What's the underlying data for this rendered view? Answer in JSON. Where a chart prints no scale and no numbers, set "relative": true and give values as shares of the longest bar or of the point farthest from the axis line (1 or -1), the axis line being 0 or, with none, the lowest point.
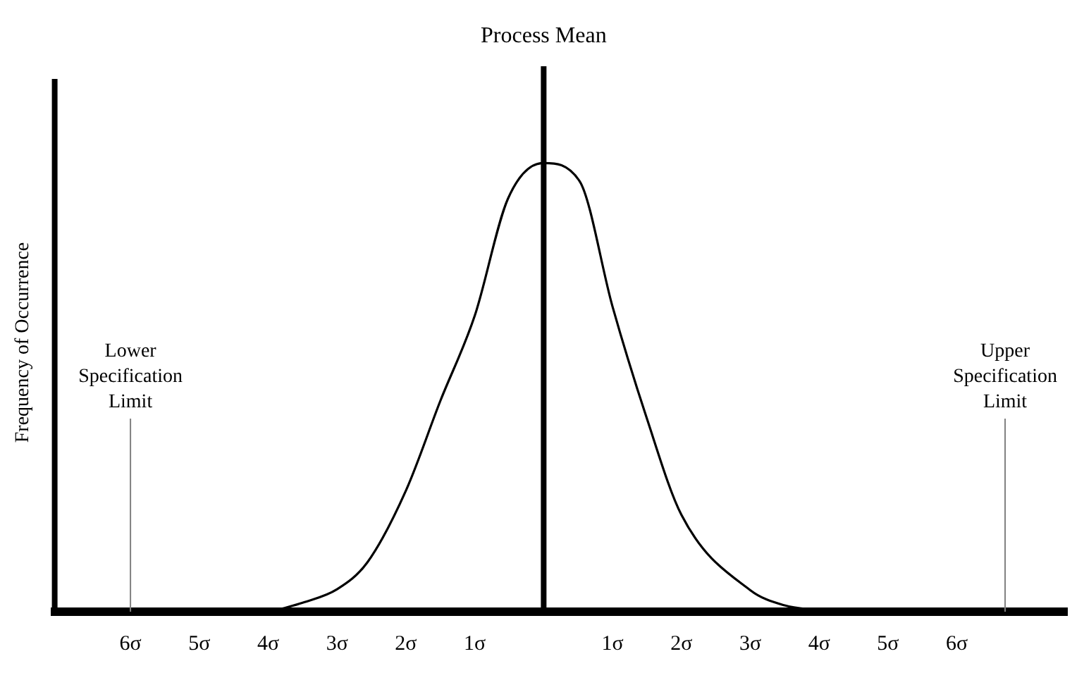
{
  "chart_data": {
    "type": "line",
    "relative": true,
    "ylabel": "Frequency of Occurrence",
    "x": [
      -3.84,
      -3.5,
      -3,
      -2.56,
      -2,
      -1.5,
      -1,
      -0.52,
      0,
      0.52,
      1,
      1.5,
      2,
      3,
      3.5,
      3.98
    ],
    "series": [
      {
        "color": "#000000",
        "values": [
          0.005,
          0.02,
          0.05,
          0.11,
          0.27,
          0.47,
          0.66,
          0.92,
          1,
          0.96,
          0.68,
          0.43,
          0.216,
          0.048,
          0.014,
          0.003
        ]
      }
    ],
    "xlim": [
      -7.1,
      7.6
    ],
    "xticks": [
      {
        "value": -6,
        "label": "6σ"
      },
      {
        "value": -5,
        "label": "5σ"
      },
      {
        "value": -4,
        "label": "4σ"
      },
      {
        "value": -3,
        "label": "3σ"
      },
      {
        "value": -2,
        "label": "2σ"
      },
      {
        "value": -1,
        "label": "1σ"
      },
      {
        "value": 1,
        "label": "1σ"
      },
      {
        "value": 2,
        "label": "2σ"
      },
      {
        "value": 3,
        "label": "3σ"
      },
      {
        "value": 4,
        "label": "4σ"
      },
      {
        "value": 5,
        "label": "5σ"
      },
      {
        "value": 6,
        "label": "6σ"
      }
    ],
    "ref_lines": [
      {
        "axis": "x",
        "value": 0,
        "label": "Process Mean",
        "color": "#000000"
      },
      {
        "axis": "x",
        "value": -7.1,
        "color": "#000000"
      },
      {
        "axis": "x",
        "value": -6,
        "label": "Lower Specification Limit",
        "color": "#808080"
      },
      {
        "axis": "x",
        "value": 6.7,
        "label": "Upper Specification Limit",
        "color": "#808080"
      }
    ],
    "grid": false,
    "legend": false,
    "marker": "none",
    "line_style": "solid"
  }
}
